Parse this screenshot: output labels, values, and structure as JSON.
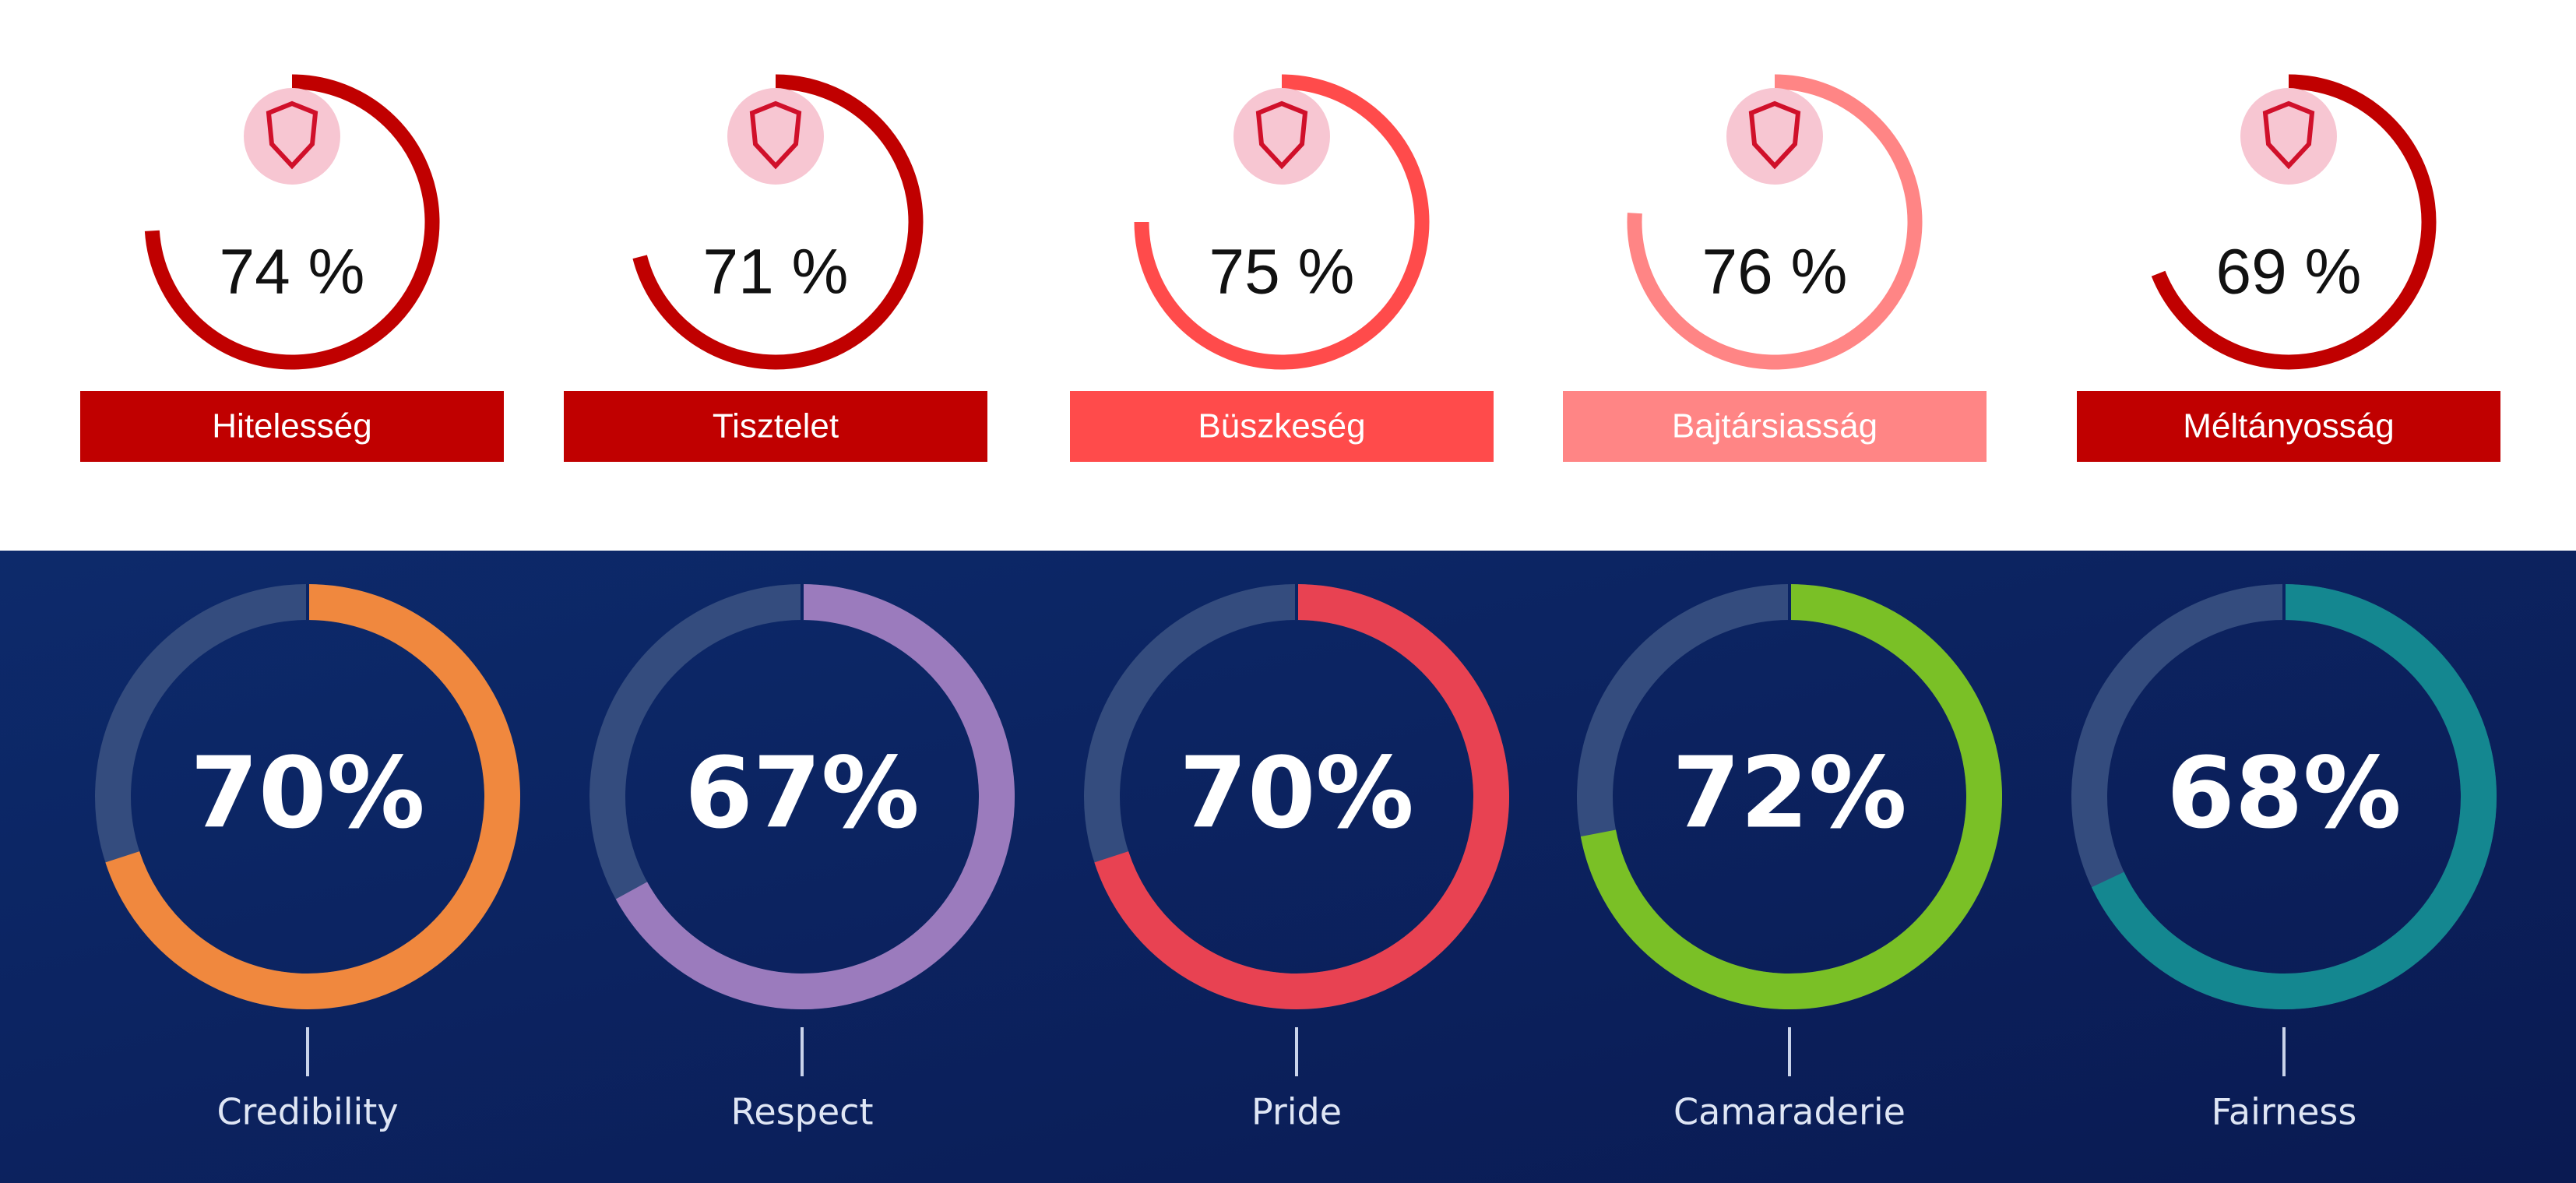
{
  "chart_data": [
    {
      "type": "gauge",
      "categories": [
        "Hitelesség",
        "Tisztelet",
        "Büszkeség",
        "Bajtársiasság",
        "Méltányosság"
      ],
      "values": [
        74,
        71,
        75,
        76,
        69
      ],
      "value_labels": [
        "74 %",
        "71 %",
        "75 %",
        "76 %",
        "69 %"
      ],
      "colors": [
        "#c00000",
        "#c00000",
        "#ff4b4b",
        "#ff8585",
        "#c00000"
      ]
    },
    {
      "type": "donut",
      "categories": [
        "Credibility",
        "Respect",
        "Pride",
        "Camaraderie",
        "Fairness"
      ],
      "values": [
        70,
        67,
        70,
        72,
        68
      ],
      "value_labels": [
        "70%",
        "67%",
        "70%",
        "72%",
        "68%"
      ],
      "colors": [
        "#f0883e",
        "#9b7bbd",
        "#e84252",
        "#7ac026",
        "#148790"
      ]
    }
  ]
}
